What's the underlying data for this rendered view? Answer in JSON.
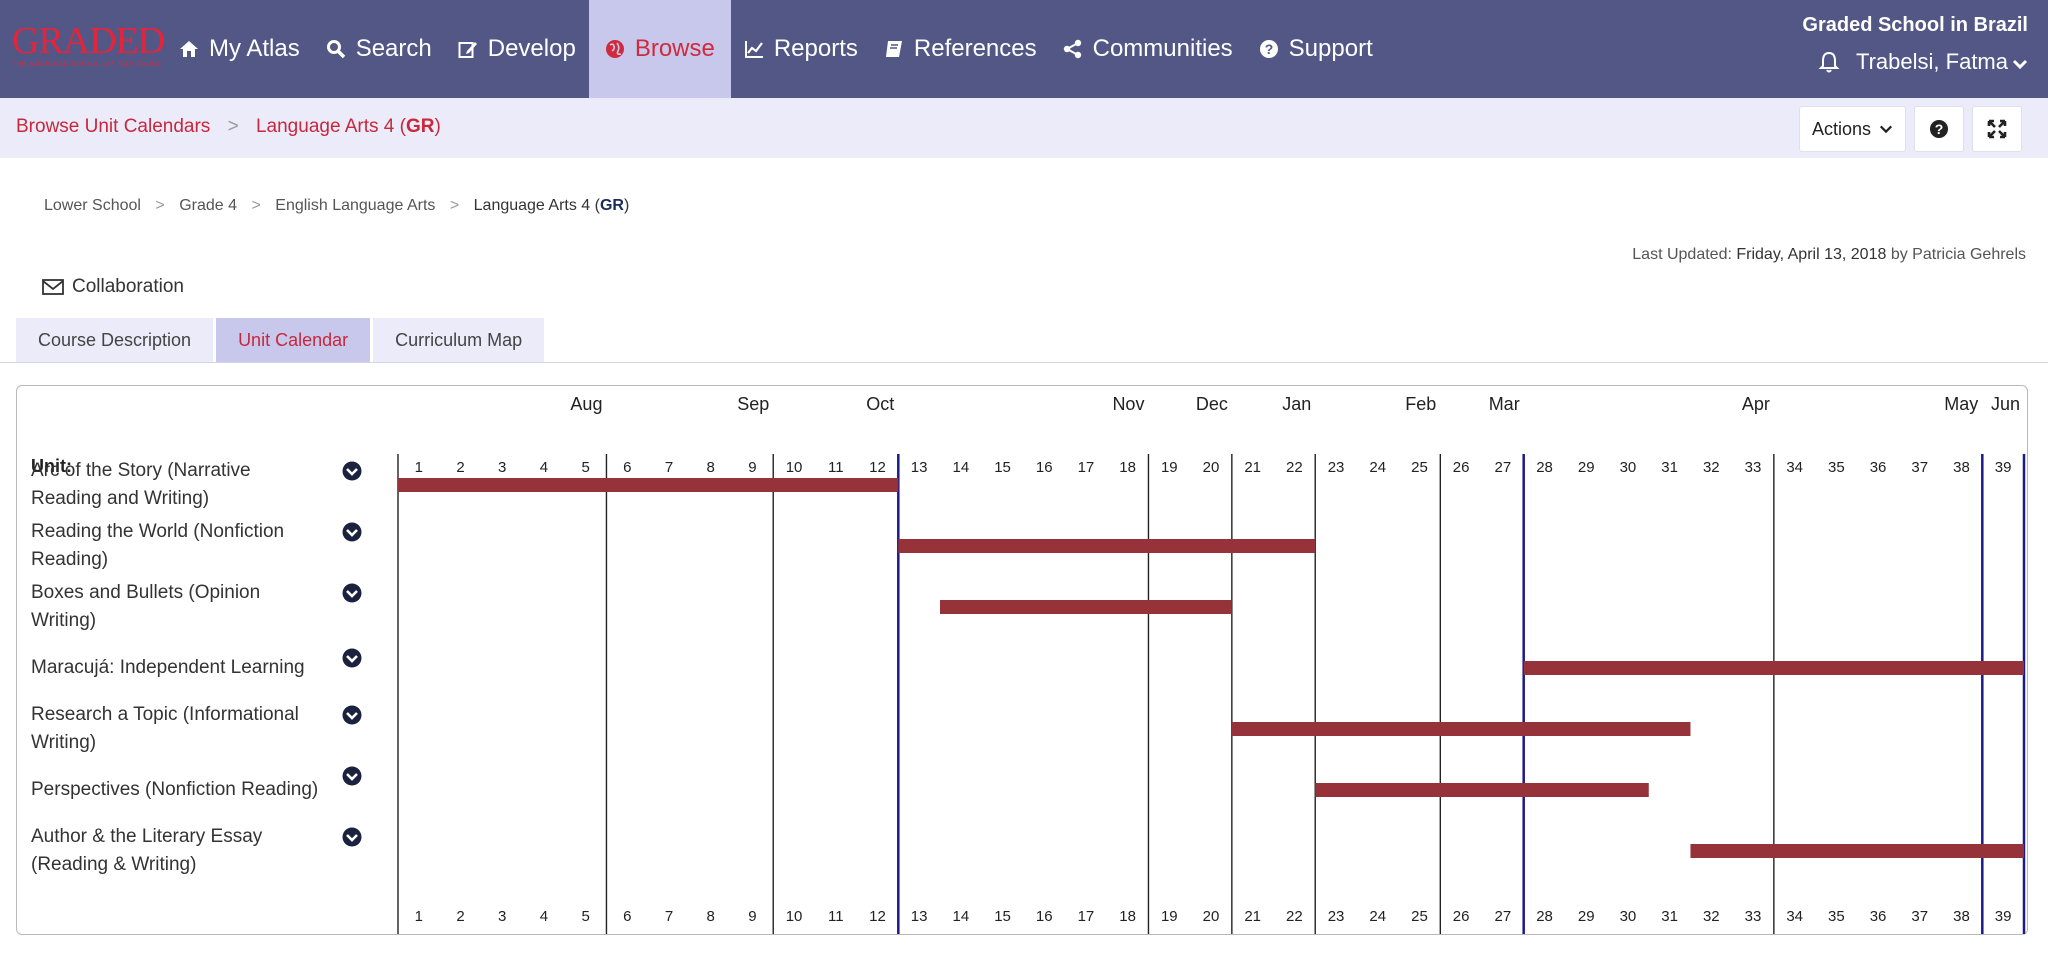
{
  "logo": {
    "text": "GRADED",
    "sub": "THE AMERICAN SCHOOL OF SÃO PAULO"
  },
  "nav": {
    "items": [
      {
        "label": "My Atlas",
        "icon": "home-icon",
        "active": false
      },
      {
        "label": "Search",
        "icon": "search-icon",
        "active": false
      },
      {
        "label": "Develop",
        "icon": "edit-icon",
        "active": false
      },
      {
        "label": "Browse",
        "icon": "globe-icon",
        "active": true
      },
      {
        "label": "Reports",
        "icon": "chart-icon",
        "active": false
      },
      {
        "label": "References",
        "icon": "book-icon",
        "active": false
      },
      {
        "label": "Communities",
        "icon": "share-icon",
        "active": false
      },
      {
        "label": "Support",
        "icon": "question-icon",
        "active": false
      }
    ],
    "school": "Graded School in Brazil",
    "user": "Trabelsi, Fatma"
  },
  "crumbbar": {
    "first": "Browse Unit Calendars",
    "second": "Language Arts 4 (",
    "second_bold": "GR",
    "second_end": ")",
    "actions_label": "Actions"
  },
  "subcrumbs": {
    "items": [
      "Lower School",
      "Grade 4",
      "English Language Arts"
    ],
    "last": "Language Arts 4 (",
    "last_bold": "GR",
    "last_end": ")"
  },
  "updated": {
    "prefix": "Last Updated: ",
    "date": "Friday, April 13, 2018",
    "mid": " by ",
    "author": "Patricia Gehrels"
  },
  "collaboration_label": "Collaboration",
  "tabs": [
    {
      "label": "Course Description",
      "active": false
    },
    {
      "label": "Unit Calendar",
      "active": true
    },
    {
      "label": "Curriculum Map",
      "active": false
    }
  ],
  "calendar": {
    "unit_header": "Unit:",
    "weeks": 39,
    "months": [
      {
        "label": "Aug",
        "start_week": 1,
        "end_week": 5
      },
      {
        "label": "Sep",
        "start_week": 6,
        "end_week": 9
      },
      {
        "label": "Oct",
        "start_week": 10,
        "end_week": 12
      },
      {
        "label": "Nov",
        "start_week": 13,
        "end_week": 18
      },
      {
        "label": "Dec",
        "start_week": 19,
        "end_week": 20
      },
      {
        "label": "Jan",
        "start_week": 21,
        "end_week": 22
      },
      {
        "label": "Feb",
        "start_week": 23,
        "end_week": 25
      },
      {
        "label": "Mar",
        "start_week": 26,
        "end_week": 27
      },
      {
        "label": "Apr",
        "start_week": 28,
        "end_week": 33
      },
      {
        "label": "May",
        "start_week": 34,
        "end_week": 38
      },
      {
        "label": "Jun",
        "start_week": 39,
        "end_week": 39
      }
    ],
    "semester_weeks": [
      13,
      28,
      39
    ],
    "bar_color": "#963239",
    "units": [
      {
        "name": "Arc of the Story (Narrative Reading and Writing)",
        "start_week": 1,
        "end_week": 12
      },
      {
        "name": "Reading the World (Nonfiction Reading)",
        "start_week": 13,
        "end_week": 22
      },
      {
        "name": "Boxes and Bullets (Opinion Writing)",
        "start_week": 14,
        "end_week": 20
      },
      {
        "name": "Maracujá: Independent Learning",
        "start_week": 28,
        "end_week": 39
      },
      {
        "name": "Research a Topic (Informational Writing)",
        "start_week": 21,
        "end_week": 31
      },
      {
        "name": "Perspectives (Nonfiction Reading)",
        "start_week": 23,
        "end_week": 30
      },
      {
        "name": "Author & the Literary Essay (Reading & Writing)",
        "start_week": 32,
        "end_week": 39
      }
    ]
  }
}
